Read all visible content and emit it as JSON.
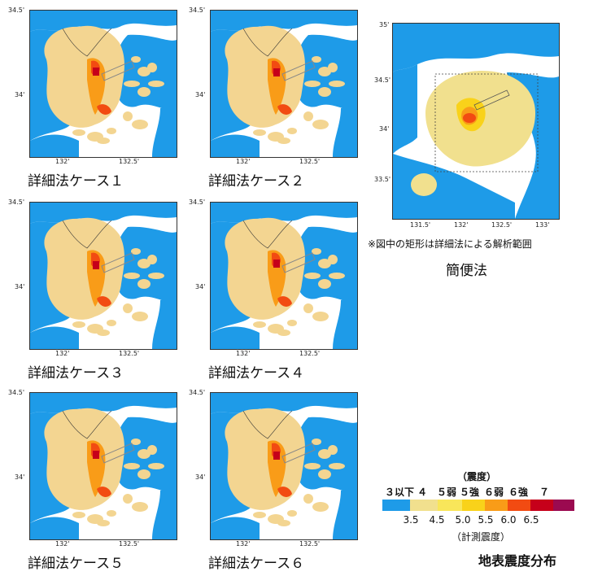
{
  "colors": {
    "sea": "#1e9be8",
    "land_low": "#f3d591",
    "c35": "#f1e08e",
    "c45": "#f9d21a",
    "c50": "#f99c18",
    "c55": "#f24b12",
    "c60": "#c6001a",
    "c65": "#9b0a50",
    "c7": "#780040",
    "fault": "#888888"
  },
  "small_maps": {
    "lat_top": "34.5'",
    "lat_mid": "34'",
    "lon_left": "132'",
    "lon_right": "132.5'",
    "cases": [
      {
        "caption": "詳細法ケース１"
      },
      {
        "caption": "詳細法ケース２"
      },
      {
        "caption": "詳細法ケース３"
      },
      {
        "caption": "詳細法ケース４"
      },
      {
        "caption": "詳細法ケース５"
      },
      {
        "caption": "詳細法ケース６"
      }
    ]
  },
  "big_map": {
    "lat_labels": [
      "35'",
      "34.5'",
      "34'",
      "33.5'"
    ],
    "lon_labels": [
      "131.5'",
      "132'",
      "132.5'",
      "133'"
    ],
    "note": "※図中の矩形は詳細法による解析範囲",
    "caption": "簡便法"
  },
  "legend": {
    "header": "（震度）",
    "intensity_labels": [
      "３以下",
      "４",
      "５弱",
      "５強",
      "６弱",
      "６強",
      "７"
    ],
    "thresholds": [
      "3.5",
      "4.5",
      "5.0",
      "5.5",
      "6.0",
      "6.5"
    ],
    "footer": "（計測震度）",
    "title": "地表震度分布"
  }
}
